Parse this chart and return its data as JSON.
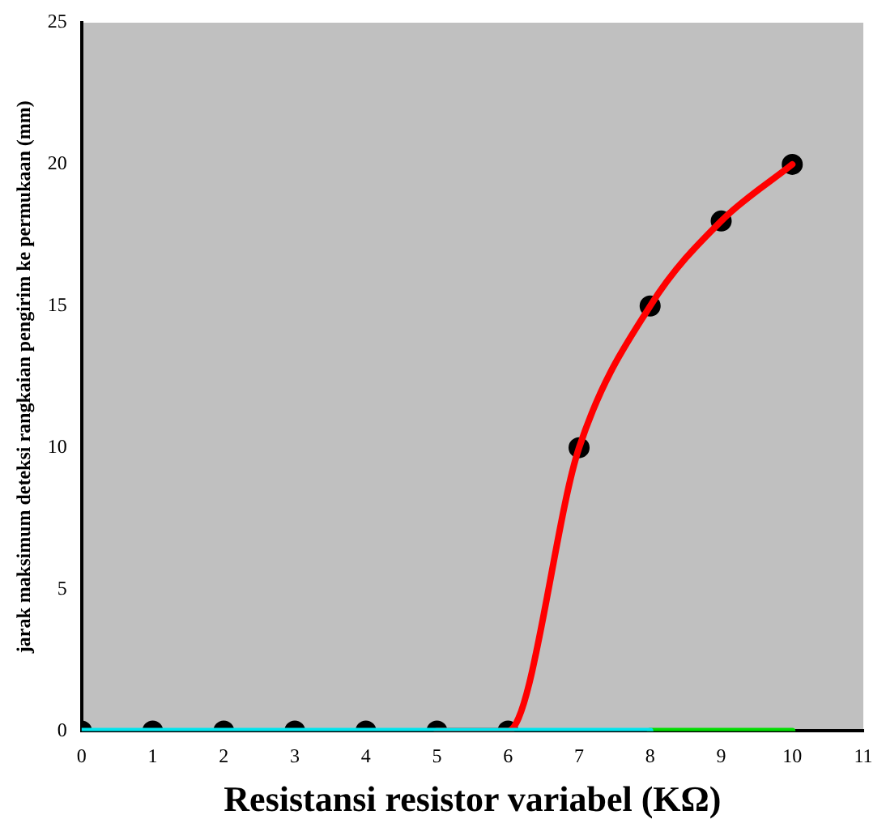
{
  "chart_data": {
    "type": "line",
    "xlabel": "Resistansi resistor variabel (KΩ)",
    "ylabel": "jarak maksimum deteksi rangkaian pengirim ke permukaan (mm)",
    "xlim": [
      0,
      11
    ],
    "xticks": [
      0,
      1,
      2,
      3,
      4,
      5,
      6,
      7,
      8,
      9,
      10,
      11
    ],
    "ylim": [
      0,
      25
    ],
    "yticks": [
      0,
      5,
      10,
      15,
      20,
      25
    ],
    "grid": false,
    "legend": false,
    "line_style": "solid",
    "series": [
      {
        "type": "line",
        "color": "#00e5ee",
        "x": [
          0,
          1,
          2,
          3,
          4,
          5,
          6,
          7,
          8
        ],
        "values": [
          0,
          0,
          0,
          0,
          0,
          0,
          0,
          0,
          0
        ],
        "marker": "none"
      },
      {
        "type": "line",
        "color": "#00dd00",
        "x": [
          8,
          9,
          10
        ],
        "values": [
          0,
          0,
          0
        ],
        "marker": "none"
      },
      {
        "type": "line",
        "color": "#ff0000",
        "x": [
          5,
          6,
          7,
          8,
          9,
          10
        ],
        "values": [
          0,
          0,
          10,
          15,
          18,
          20
        ],
        "marker": "none"
      },
      {
        "type": "scatter",
        "color": "#000000",
        "x": [
          0,
          1,
          2,
          3,
          4,
          5,
          6,
          7,
          8,
          9,
          10
        ],
        "values": [
          0,
          0,
          0,
          0,
          0,
          0,
          0,
          10,
          15,
          18,
          20
        ],
        "marker": "circle"
      }
    ]
  }
}
